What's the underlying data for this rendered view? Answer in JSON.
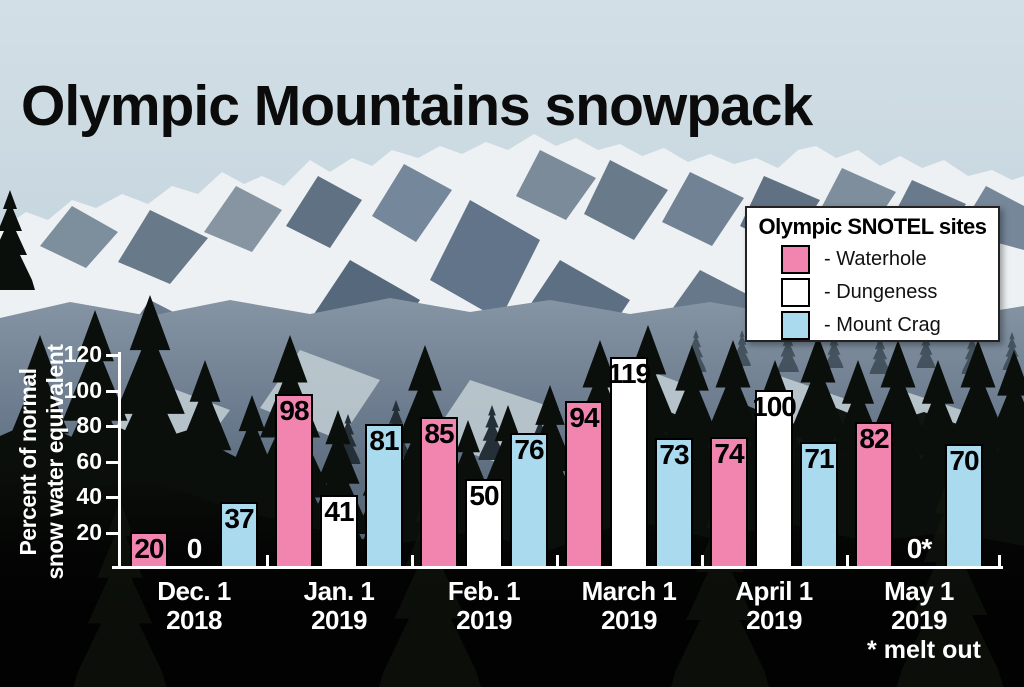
{
  "title": "Olympic Mountains snowpack",
  "legend": {
    "title": "Olympic SNOTEL sites",
    "items": [
      {
        "name": "Waterhole",
        "label": "- Waterhole",
        "color": "#f285b0"
      },
      {
        "name": "Dungeness",
        "label": "- Dungeness",
        "color": "#ffffff"
      },
      {
        "name": "Mount Crag",
        "label": "- Mount Crag",
        "color": "#a9daee"
      }
    ]
  },
  "footnote": "* melt out",
  "chart_data": {
    "type": "bar",
    "title": "Olympic Mountains snowpack",
    "ylabel": "Percent of normal snow water equivalent",
    "ylabel_lines": [
      "Percent of normal",
      "snow water equivalent"
    ],
    "ylim": [
      0,
      120
    ],
    "yticks": [
      20,
      40,
      60,
      80,
      100,
      120
    ],
    "grid": false,
    "legend_position": "upper right",
    "axis_color": "#ffffff",
    "categories": [
      {
        "line1": "Dec. 1",
        "line2": "2018"
      },
      {
        "line1": "Jan. 1",
        "line2": "2019"
      },
      {
        "line1": "Feb. 1",
        "line2": "2019"
      },
      {
        "line1": "March 1",
        "line2": "2019"
      },
      {
        "line1": "April 1",
        "line2": "2019"
      },
      {
        "line1": "May 1",
        "line2": "2019"
      }
    ],
    "series": [
      {
        "name": "Waterhole",
        "color": "#f285b0",
        "values": [
          20,
          98,
          85,
          94,
          74,
          82
        ],
        "labels": [
          "20",
          "98",
          "85",
          "94",
          "74",
          "82"
        ]
      },
      {
        "name": "Dungeness",
        "color": "#ffffff",
        "values": [
          0,
          41,
          50,
          119,
          100,
          0
        ],
        "labels": [
          "0",
          "41",
          "50",
          "119",
          "100",
          "0*"
        ]
      },
      {
        "name": "Mount Crag",
        "color": "#a9daee",
        "values": [
          37,
          81,
          76,
          73,
          71,
          70
        ],
        "labels": [
          "37",
          "81",
          "76",
          "73",
          "71",
          "70"
        ]
      }
    ],
    "zero_note": "* melt out"
  }
}
